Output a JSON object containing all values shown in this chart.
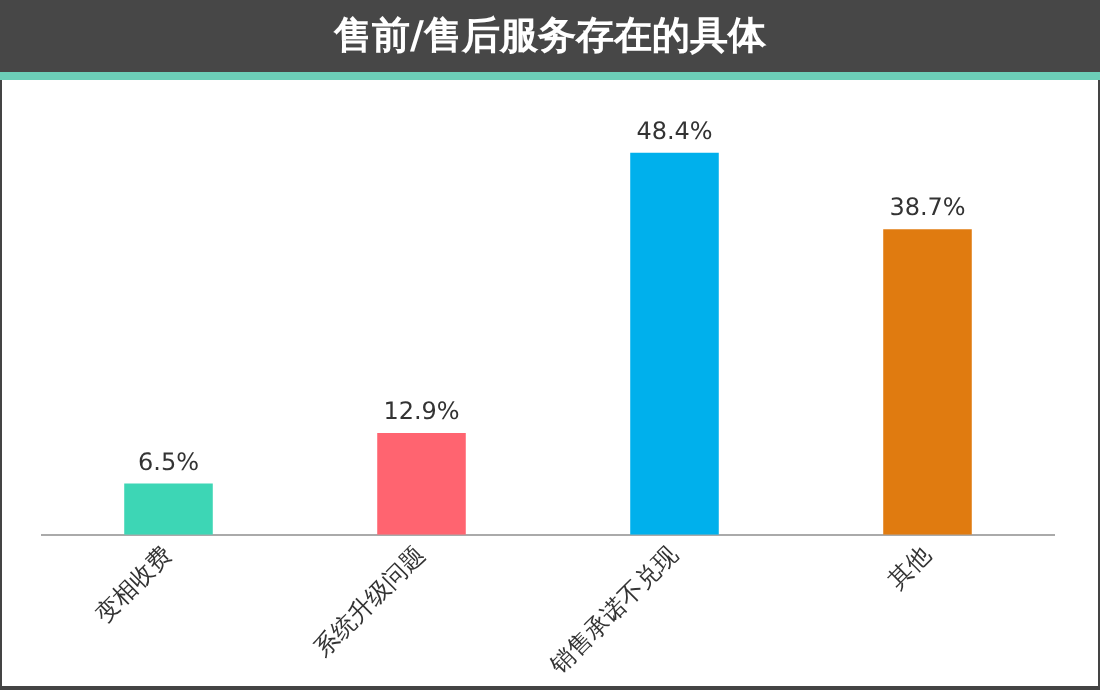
{
  "chart_data": {
    "type": "bar",
    "title": "售前/售后服务存在的具体",
    "categories": [
      "变相收费",
      "系统升级问题",
      "销售承诺不兑现",
      "其他"
    ],
    "values": [
      6.5,
      12.9,
      48.4,
      38.7
    ],
    "colors": [
      "#3dd6b5",
      "#ff6470",
      "#00b0ec",
      "#e07b10"
    ],
    "value_labels": [
      "6.5%",
      "12.9%",
      "48.4%",
      "38.7%"
    ],
    "grid": false,
    "legend": false
  }
}
